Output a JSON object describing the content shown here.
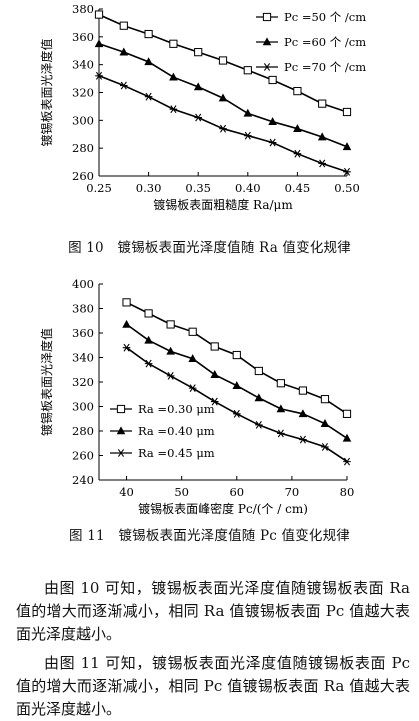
{
  "figure10": {
    "caption": "图 10　镀锡板表面光泽度值随 Ra 值变化规律",
    "chart_data": {
      "type": "line",
      "xlabel": "镀锡板表面粗糙度 Ra/μm",
      "ylabel": "镀锡板表面光泽度值",
      "xlim": [
        0.25,
        0.5
      ],
      "ylim": [
        260,
        380
      ],
      "xticks": [
        0.25,
        0.3,
        0.35,
        0.4,
        0.45,
        0.5
      ],
      "xtick_labels": [
        "0.25",
        "0.30",
        "0.35",
        "0.40",
        "0.45",
        "0.50"
      ],
      "yticks": [
        260,
        280,
        300,
        320,
        340,
        360,
        380
      ],
      "legend_position": "top-right",
      "series": [
        {
          "name": "Pc =50 个 /cm",
          "marker": "square",
          "x": [
            0.25,
            0.275,
            0.3,
            0.325,
            0.35,
            0.375,
            0.4,
            0.425,
            0.45,
            0.475,
            0.5
          ],
          "y": [
            376,
            368,
            362,
            355,
            349,
            343,
            336,
            329,
            321,
            312,
            306
          ]
        },
        {
          "name": "Pc =60 个 /cm",
          "marker": "triangle",
          "x": [
            0.25,
            0.275,
            0.3,
            0.325,
            0.35,
            0.375,
            0.4,
            0.425,
            0.45,
            0.475,
            0.5
          ],
          "y": [
            355,
            349,
            342,
            331,
            324,
            316,
            305,
            299,
            294,
            288,
            281
          ]
        },
        {
          "name": "Pc =70 个 /cm",
          "marker": "star",
          "x": [
            0.25,
            0.275,
            0.3,
            0.325,
            0.35,
            0.375,
            0.4,
            0.425,
            0.45,
            0.475,
            0.5
          ],
          "y": [
            332,
            325,
            317,
            308,
            302,
            294,
            289,
            284,
            276,
            269,
            263
          ]
        }
      ]
    }
  },
  "figure11": {
    "caption": "图 11　镀锡板表面光泽度值随 Pc 值变化规律",
    "chart_data": {
      "type": "line",
      "xlabel": "镀锡板表面峰密度 Pc/(个 / cm)",
      "ylabel": "镀锡板表面光泽度值",
      "xlim": [
        35,
        80
      ],
      "ylim": [
        240,
        400
      ],
      "xticks": [
        40,
        50,
        60,
        70,
        80
      ],
      "xtick_labels": [
        "40",
        "50",
        "60",
        "70",
        "80"
      ],
      "yticks": [
        240,
        260,
        280,
        300,
        320,
        340,
        360,
        380,
        400
      ],
      "legend_position": "bottom-left",
      "series": [
        {
          "name": "Ra =0.30 μm",
          "marker": "square",
          "x": [
            40,
            44,
            48,
            52,
            56,
            60,
            64,
            68,
            72,
            76,
            80
          ],
          "y": [
            385,
            376,
            367,
            361,
            349,
            342,
            329,
            319,
            313,
            306,
            294
          ]
        },
        {
          "name": "Ra =0.40 μm",
          "marker": "triangle",
          "x": [
            40,
            44,
            48,
            52,
            56,
            60,
            64,
            68,
            72,
            76,
            80
          ],
          "y": [
            367,
            354,
            345,
            339,
            326,
            317,
            307,
            298,
            294,
            286,
            274
          ]
        },
        {
          "name": "Ra =0.45 μm",
          "marker": "star",
          "x": [
            40,
            44,
            48,
            52,
            56,
            60,
            64,
            68,
            72,
            76,
            80
          ],
          "y": [
            348,
            335,
            325,
            315,
            304,
            294,
            285,
            278,
            273,
            267,
            255
          ]
        }
      ]
    }
  },
  "text": {
    "para1": "由图 10 可知，镀锡板表面光泽度值随镀锡板表面 Ra 值的增大而逐渐减小，相同 Ra 值镀锡板表面 Pc 值越大表面光泽度越小。",
    "para2": "由图 11 可知，镀锡板表面光泽度值随镀锡板表面 Pc 值的增大而逐渐减小，相同 Pc 值镀锡板表面 Ra 值越大表面光泽度越小。"
  }
}
